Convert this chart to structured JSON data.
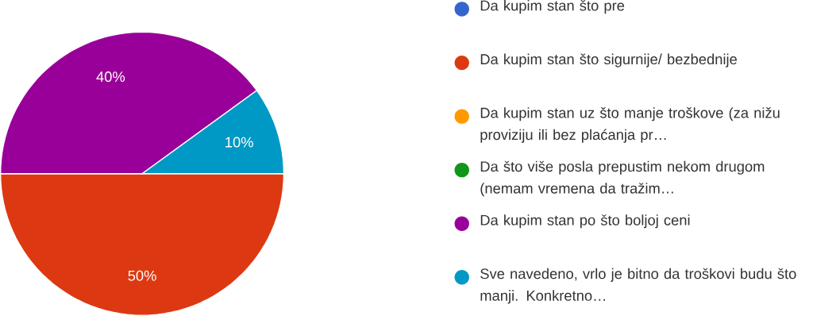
{
  "chart_data": {
    "type": "pie",
    "categories": [
      "Da kupim stan što pre",
      "Da kupim stan što sigurnije/ bezbednije",
      "Da kupim stan uz što manje troškove (za nižu proviziju ili bez plaćanja pr…",
      "Da što više posla prepustim nekom drugom (nemam vremena da tražim…",
      "Da kupim stan po što boljoj ceni",
      "Sve navedeno, vrlo je bitno da troškovi budu što manji. Konkretno…"
    ],
    "values": [
      0,
      50,
      0,
      0,
      40,
      10
    ],
    "colors": [
      "#3366cc",
      "#dc3912",
      "#ff9900",
      "#109618",
      "#990099",
      "#0099c6"
    ],
    "value_labels": [
      null,
      "50%",
      null,
      null,
      "40%",
      "10%"
    ],
    "legend": "right"
  }
}
